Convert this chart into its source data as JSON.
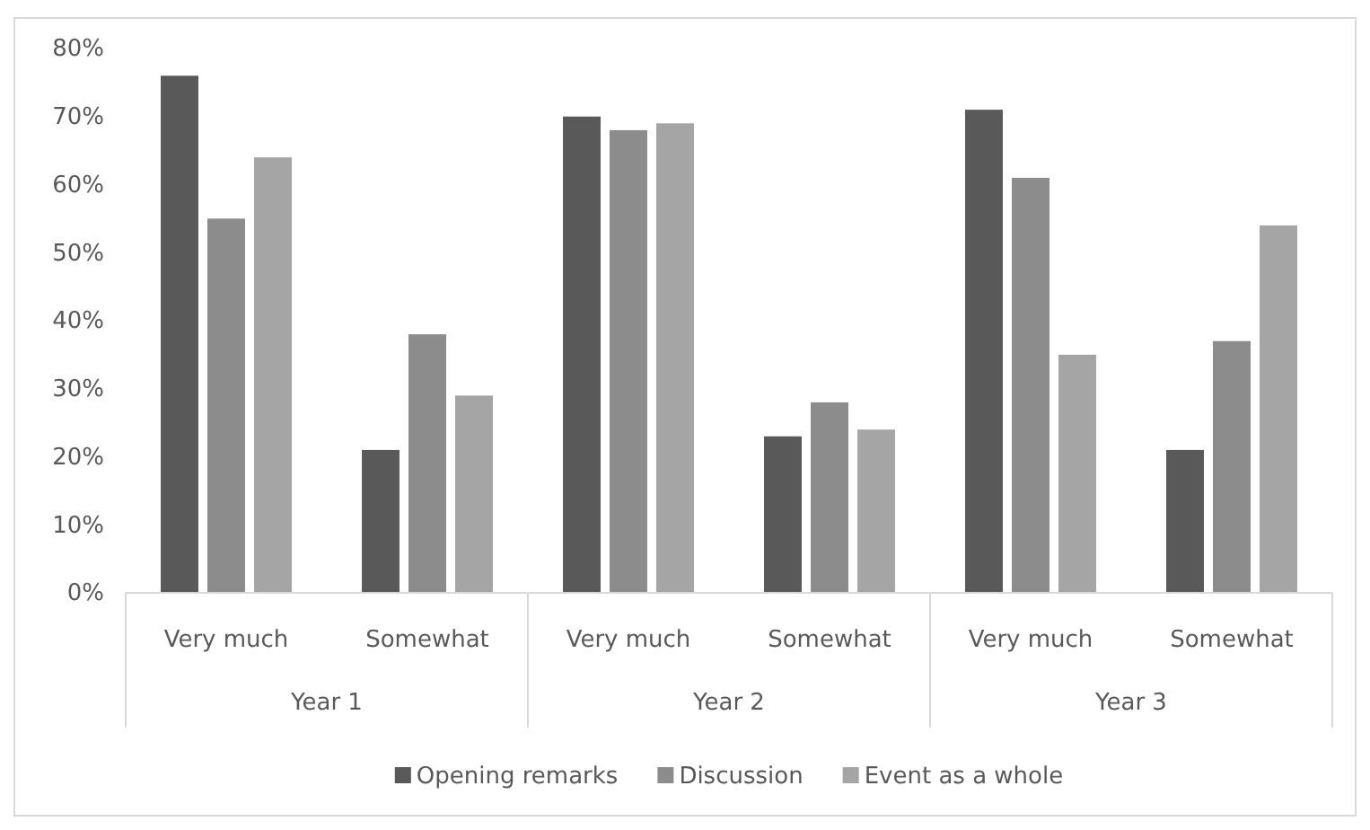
{
  "chart_data": {
    "type": "bar",
    "categories": [
      "Very much",
      "Somewhat",
      "Very much",
      "Somewhat",
      "Very much",
      "Somewhat"
    ],
    "annotations": [
      "Year 1",
      "Year 2",
      "Year 3"
    ],
    "series": [
      {
        "name": "Opening remarks",
        "color": "#595959",
        "values": [
          76,
          21,
          70,
          23,
          71,
          21
        ]
      },
      {
        "name": "Discussion",
        "color": "#8c8c8c",
        "values": [
          55,
          38,
          68,
          28,
          61,
          37
        ]
      },
      {
        "name": "Event as a whole",
        "color": "#a5a5a5",
        "values": [
          64,
          29,
          69,
          24,
          35,
          54
        ]
      }
    ],
    "ylim": [
      0,
      80
    ],
    "yticks": [
      {
        "value": 0,
        "label": "0%"
      },
      {
        "value": 10,
        "label": "10%"
      },
      {
        "value": 20,
        "label": "20%"
      },
      {
        "value": 30,
        "label": "30%"
      },
      {
        "value": 40,
        "label": "40%"
      },
      {
        "value": 50,
        "label": "50%"
      },
      {
        "value": 60,
        "label": "60%"
      },
      {
        "value": 70,
        "label": "70%"
      },
      {
        "value": 80,
        "label": "80%"
      }
    ],
    "legend": "bottom"
  }
}
